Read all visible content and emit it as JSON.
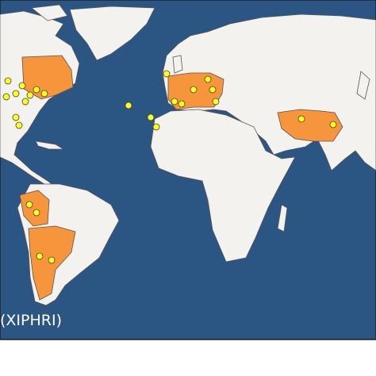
{
  "legend": {
    "label": "(XIPHRI)"
  }
}
